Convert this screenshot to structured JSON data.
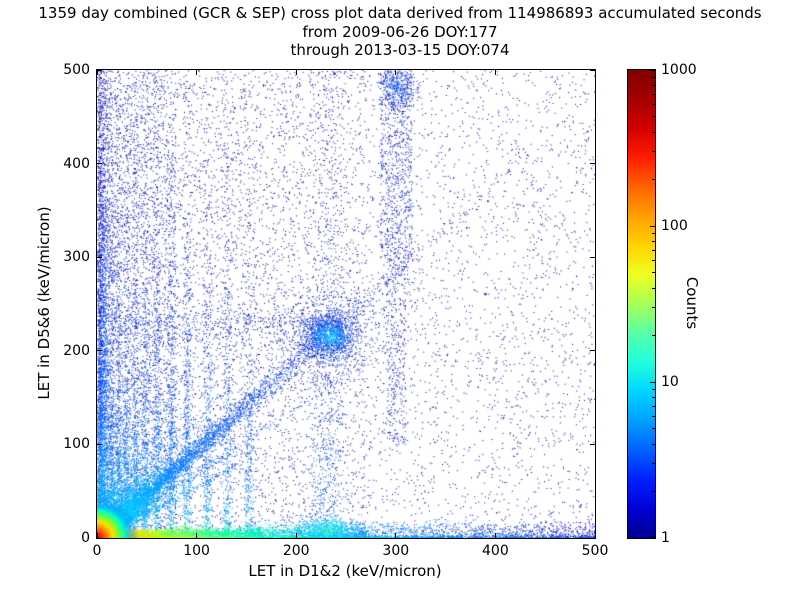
{
  "chart_data": {
    "type": "heatmap",
    "title": "1359 day combined (GCR & SEP) cross plot data derived from 114986893 accumulated seconds",
    "subtitle1": "from 2009-06-26 DOY:177",
    "subtitle2": "through 2013-03-15 DOY:074",
    "xlabel": "LET in D1&2 (keV/micron)",
    "ylabel": "LET in D5&6 (keV/micron)",
    "xlim": [
      0,
      500
    ],
    "ylim": [
      0,
      500
    ],
    "grid": false,
    "x_ticks": {
      "values": [
        0,
        100,
        200,
        300,
        400,
        500
      ],
      "labels": [
        "0",
        "100",
        "200",
        "300",
        "400",
        "500"
      ]
    },
    "y_ticks": {
      "values": [
        0,
        100,
        200,
        300,
        400,
        500
      ],
      "labels": [
        "0",
        "100",
        "200",
        "300",
        "400",
        "500"
      ]
    },
    "colorbar": {
      "label": "Counts",
      "scale": "log",
      "min": 1,
      "max": 1000,
      "ticks": {
        "values": [
          1000,
          100,
          10,
          1
        ],
        "labels": [
          "1000",
          "100",
          "10",
          "1"
        ]
      },
      "colors": [
        "#800000",
        "#a50000",
        "#d30000",
        "#ff1c00",
        "#ff6400",
        "#ffa000",
        "#ffd200",
        "#f0ff20",
        "#a8ff57",
        "#57ffa8",
        "#20ffde",
        "#00d4ff",
        "#009fff",
        "#0060ff",
        "#0020ff",
        "#0000d4",
        "#000090"
      ]
    },
    "features": [
      {
        "type": "uniform",
        "n": 5200,
        "xr": [
          0,
          500
        ],
        "yr": [
          0,
          500
        ],
        "pal": [
          [
            0,
            "#000090"
          ],
          [
            1,
            "#0000d0"
          ]
        ]
      },
      {
        "type": "uniform",
        "n": 2600,
        "xr": [
          0,
          270
        ],
        "yr": [
          0,
          500
        ],
        "pal": [
          [
            0,
            "#000090"
          ],
          [
            1,
            "#0010d0"
          ]
        ]
      },
      {
        "type": "uniform",
        "n": 1600,
        "xr": [
          0,
          80
        ],
        "yr": [
          0,
          500
        ],
        "pal": [
          [
            0,
            "#0000a0"
          ],
          [
            1,
            "#0030e0"
          ]
        ]
      },
      {
        "type": "hline",
        "y": 230,
        "s": 7,
        "xr": [
          0,
          250
        ],
        "n": 380,
        "pal": [
          [
            0,
            "#0040e0"
          ],
          [
            1,
            "#0000a8"
          ]
        ]
      },
      {
        "type": "vline",
        "x": 231,
        "s": 9,
        "y0": 0,
        "scale": 400,
        "n": 900,
        "pal": [
          [
            0,
            "#0080ff"
          ],
          [
            0.4,
            "#0030d0"
          ],
          [
            1,
            "#0000a0"
          ]
        ]
      },
      {
        "type": "uniform",
        "n": 800,
        "xr": [
          284,
          316
        ],
        "yr": [
          300,
          500
        ],
        "pal": [
          [
            0,
            "#0000a8"
          ],
          [
            1,
            "#0040e0"
          ]
        ]
      },
      {
        "type": "uniform",
        "n": 350,
        "xr": [
          290,
          310
        ],
        "yr": [
          100,
          300
        ],
        "pal": [
          [
            0,
            "#0000a8"
          ],
          [
            1,
            "#0030d0"
          ]
        ]
      },
      {
        "type": "gauss",
        "cx": 301,
        "cy": 482,
        "sx": 10,
        "sy": 12,
        "n": 350,
        "pal": [
          [
            0,
            "#0060ff"
          ],
          [
            1,
            "#0000b0"
          ]
        ]
      },
      {
        "type": "vline",
        "x": 2.5,
        "s": 2.5,
        "y0": 0,
        "scale": 260,
        "n": 3200,
        "pal": [
          [
            0,
            "#00d8e8"
          ],
          [
            0.1,
            "#00a0ff"
          ],
          [
            0.3,
            "#0050ff"
          ],
          [
            0.6,
            "#0018d8"
          ],
          [
            1,
            "#0000a8"
          ]
        ]
      },
      {
        "type": "vline",
        "x": 8,
        "s": 2.2,
        "y0": 0,
        "scale": 220,
        "n": 1400,
        "pal": [
          [
            0,
            "#00c0ff"
          ],
          [
            0.25,
            "#0060ff"
          ],
          [
            1,
            "#0000b0"
          ]
        ]
      },
      {
        "type": "vline",
        "x": 14,
        "s": 2.0,
        "y0": 0,
        "scale": 180,
        "n": 700,
        "pal": [
          [
            0,
            "#00c0f0"
          ],
          [
            0.15,
            "#0070ff"
          ],
          [
            0.45,
            "#0028d0"
          ],
          [
            1,
            "#0000a0"
          ]
        ]
      },
      {
        "type": "vline",
        "x": 21,
        "s": 1.8,
        "y0": 0,
        "scale": 200,
        "n": 650,
        "pal": [
          [
            0,
            "#00c0f0"
          ],
          [
            0.15,
            "#0070ff"
          ],
          [
            0.45,
            "#0028d0"
          ],
          [
            1,
            "#0000a0"
          ]
        ]
      },
      {
        "type": "vline",
        "x": 29,
        "s": 2.0,
        "y0": 0,
        "scale": 170,
        "n": 600,
        "pal": [
          [
            0,
            "#00c0f0"
          ],
          [
            0.15,
            "#0070ff"
          ],
          [
            0.45,
            "#0028d0"
          ],
          [
            1,
            "#0000a0"
          ]
        ]
      },
      {
        "type": "vline",
        "x": 38,
        "s": 2.0,
        "y0": 0,
        "scale": 200,
        "n": 600,
        "pal": [
          [
            0,
            "#00c0f0"
          ],
          [
            0.15,
            "#0070ff"
          ],
          [
            0.45,
            "#0028d0"
          ],
          [
            1,
            "#0000a0"
          ]
        ]
      },
      {
        "type": "vline",
        "x": 48,
        "s": 2.2,
        "y0": 0,
        "scale": 160,
        "n": 550,
        "pal": [
          [
            0,
            "#00c0f0"
          ],
          [
            0.15,
            "#0070ff"
          ],
          [
            0.45,
            "#0028d0"
          ],
          [
            1,
            "#0000a0"
          ]
        ]
      },
      {
        "type": "vline",
        "x": 60,
        "s": 2.2,
        "y0": 0,
        "scale": 200,
        "n": 550,
        "pal": [
          [
            0,
            "#00c0f0"
          ],
          [
            0.15,
            "#0070ff"
          ],
          [
            0.45,
            "#0028d0"
          ],
          [
            1,
            "#0000a0"
          ]
        ]
      },
      {
        "type": "vline",
        "x": 74,
        "s": 2.2,
        "y0": 0,
        "scale": 150,
        "n": 500,
        "pal": [
          [
            0,
            "#00c0f0"
          ],
          [
            0.15,
            "#0070ff"
          ],
          [
            0.45,
            "#0028d0"
          ],
          [
            1,
            "#0000a0"
          ]
        ]
      },
      {
        "type": "vline",
        "x": 90,
        "s": 2.4,
        "y0": 0,
        "scale": 190,
        "n": 500,
        "pal": [
          [
            0,
            "#00c0f0"
          ],
          [
            0.15,
            "#0070ff"
          ],
          [
            0.45,
            "#0028d0"
          ],
          [
            1,
            "#0000a0"
          ]
        ]
      },
      {
        "type": "vline",
        "x": 110,
        "s": 2.4,
        "y0": 0,
        "scale": 150,
        "n": 420,
        "pal": [
          [
            0,
            "#00c0f0"
          ],
          [
            0.15,
            "#0070ff"
          ],
          [
            0.45,
            "#0028d0"
          ],
          [
            1,
            "#0000a0"
          ]
        ]
      },
      {
        "type": "vline",
        "x": 130,
        "s": 2.4,
        "y0": 0,
        "scale": 170,
        "n": 400,
        "pal": [
          [
            0,
            "#00c0f0"
          ],
          [
            0.15,
            "#0070ff"
          ],
          [
            0.45,
            "#0028d0"
          ],
          [
            1,
            "#0000a0"
          ]
        ]
      },
      {
        "type": "vline",
        "x": 152,
        "s": 2.6,
        "y0": 0,
        "scale": 140,
        "n": 330,
        "pal": [
          [
            0,
            "#00c0f0"
          ],
          [
            0.15,
            "#0070ff"
          ],
          [
            0.45,
            "#0028d0"
          ],
          [
            1,
            "#0000a0"
          ]
        ]
      },
      {
        "type": "ray",
        "m": 0.55,
        "s": 2.2,
        "scale": 50,
        "rmax": 450,
        "n": 650,
        "pal": [
          [
            0,
            "#00e8ff"
          ],
          [
            0.15,
            "#00a0ff"
          ],
          [
            0.4,
            "#0050f0"
          ],
          [
            1,
            "#0000b0"
          ]
        ]
      },
      {
        "type": "ray",
        "m": 0.7,
        "s": 2.2,
        "scale": 60,
        "rmax": 450,
        "n": 700,
        "pal": [
          [
            0,
            "#00e8ff"
          ],
          [
            0.15,
            "#00a0ff"
          ],
          [
            0.4,
            "#0050f0"
          ],
          [
            1,
            "#0000b0"
          ]
        ]
      },
      {
        "type": "ray",
        "m": 1.25,
        "s": 2.5,
        "scale": 60,
        "rmax": 450,
        "n": 700,
        "pal": [
          [
            0,
            "#00e8ff"
          ],
          [
            0.15,
            "#00a0ff"
          ],
          [
            0.4,
            "#0050f0"
          ],
          [
            1,
            "#0000b0"
          ]
        ]
      },
      {
        "type": "ray",
        "m": 1.55,
        "s": 2.5,
        "scale": 50,
        "rmax": 450,
        "n": 600,
        "pal": [
          [
            0,
            "#00e8ff"
          ],
          [
            0.15,
            "#00a0ff"
          ],
          [
            0.4,
            "#0050f0"
          ],
          [
            1,
            "#0000b0"
          ]
        ]
      },
      {
        "type": "ray",
        "m": 2.0,
        "s": 2.5,
        "scale": 45,
        "rmax": 450,
        "n": 500,
        "pal": [
          [
            0,
            "#00e8ff"
          ],
          [
            0.15,
            "#00a0ff"
          ],
          [
            0.4,
            "#0050f0"
          ],
          [
            1,
            "#0000b0"
          ]
        ]
      },
      {
        "type": "ray",
        "m": 2.8,
        "s": 2.5,
        "scale": 40,
        "rmax": 450,
        "n": 450,
        "pal": [
          [
            0,
            "#00e8ff"
          ],
          [
            0.15,
            "#00a0ff"
          ],
          [
            0.4,
            "#0050f0"
          ],
          [
            1,
            "#0000b0"
          ]
        ]
      },
      {
        "type": "ray",
        "m": 4.0,
        "s": 2.5,
        "scale": 38,
        "rmax": 450,
        "n": 400,
        "pal": [
          [
            0,
            "#00e8ff"
          ],
          [
            0.15,
            "#00a0ff"
          ],
          [
            0.4,
            "#0050f0"
          ],
          [
            1,
            "#0000b0"
          ]
        ]
      },
      {
        "type": "ray",
        "m": 0.95,
        "s": 5,
        "scale": 115,
        "rmax": 600,
        "n": 3800,
        "pal": [
          [
            0,
            "#00ffe0"
          ],
          [
            0.08,
            "#00c0ff"
          ],
          [
            0.2,
            "#0070ff"
          ],
          [
            0.45,
            "#0030e0"
          ],
          [
            1,
            "#0000a0"
          ]
        ]
      },
      {
        "type": "ray",
        "m": 0.95,
        "s": 3,
        "scale": 55,
        "rmax": 260,
        "n": 1600,
        "pal": [
          [
            0,
            "#40ffc0"
          ],
          [
            0.15,
            "#00d0ff"
          ],
          [
            0.4,
            "#0080ff"
          ],
          [
            1,
            "#0030c0"
          ]
        ]
      },
      {
        "type": "gauss",
        "cx": 232,
        "cy": 216,
        "sx": 13,
        "sy": 11,
        "n": 1100,
        "pal": [
          [
            0,
            "#00e0ff"
          ],
          [
            0.3,
            "#0090ff"
          ],
          [
            0.6,
            "#0040e0"
          ],
          [
            1,
            "#0010b0"
          ]
        ]
      },
      {
        "type": "gauss",
        "cx": 232,
        "cy": 216,
        "sx": 30,
        "sy": 26,
        "n": 700,
        "pal": [
          [
            0,
            "#0060ff"
          ],
          [
            1,
            "#0000a8"
          ]
        ]
      },
      {
        "type": "hline",
        "y": 3,
        "s": 3,
        "xr": [
          0,
          75
        ],
        "n": 2600,
        "pal": [
          [
            0,
            "#ff9000"
          ],
          [
            0.4,
            "#ffd000"
          ],
          [
            0.8,
            "#b0ff20"
          ],
          [
            1,
            "#60ff60"
          ]
        ]
      },
      {
        "type": "hline",
        "y": 4,
        "s": 4,
        "xr": [
          70,
          165
        ],
        "n": 1700,
        "pal": [
          [
            0,
            "#80ff40"
          ],
          [
            0.6,
            "#00ff9f"
          ],
          [
            1,
            "#00e8d0"
          ]
        ]
      },
      {
        "type": "hline",
        "y": 4,
        "s": 5,
        "xr": [
          160,
          270
        ],
        "n": 1400,
        "pal": [
          [
            0,
            "#00efc0"
          ],
          [
            0.6,
            "#00c0ff"
          ],
          [
            1,
            "#0090ff"
          ]
        ]
      },
      {
        "type": "hline",
        "y": 5,
        "s": 6,
        "xr": [
          265,
          500
        ],
        "n": 1100,
        "pal": [
          [
            0,
            "#0090ff"
          ],
          [
            0.5,
            "#0040e0"
          ],
          [
            1,
            "#0000c0"
          ]
        ]
      },
      {
        "type": "gauss",
        "cx": 231,
        "cy": 9,
        "sx": 16,
        "sy": 7,
        "n": 650,
        "pal": [
          [
            0,
            "#30ffb0"
          ],
          [
            0.5,
            "#00d0ff"
          ],
          [
            1,
            "#0080ff"
          ]
        ]
      },
      {
        "type": "hline",
        "y": 1,
        "s": 1.2,
        "xr": [
          0,
          500
        ],
        "n": 1500,
        "pal": [
          [
            0,
            "#ffb000"
          ],
          [
            0.15,
            "#c0ff20"
          ],
          [
            0.35,
            "#00ffc0"
          ],
          [
            0.6,
            "#00a0ff"
          ],
          [
            1,
            "#0040d0"
          ]
        ]
      },
      {
        "type": "hotspot",
        "cx": 0,
        "cy": 0,
        "r": 42,
        "stops": [
          [
            0,
            "#c00000"
          ],
          [
            0.12,
            "#ff2a00"
          ],
          [
            0.25,
            "#ff8c00"
          ],
          [
            0.38,
            "#ffe000"
          ],
          [
            0.52,
            "#70ff30"
          ],
          [
            0.66,
            "#00ffd0"
          ],
          [
            0.8,
            "rgba(0,160,255,0.55)"
          ],
          [
            1,
            "rgba(0,80,255,0)"
          ]
        ]
      }
    ]
  }
}
